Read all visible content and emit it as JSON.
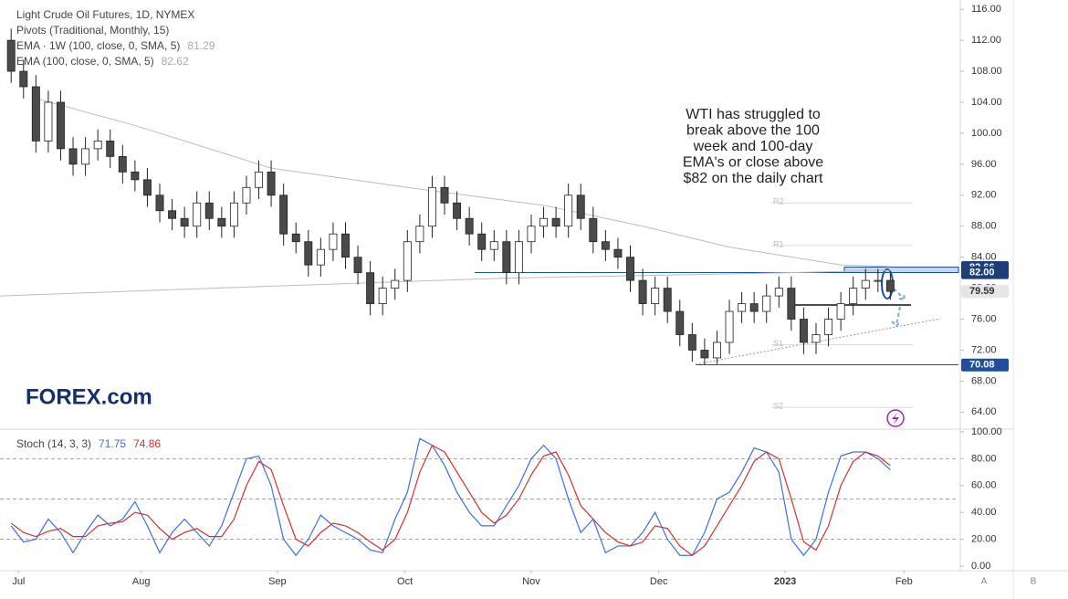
{
  "chart_data": [
    {
      "type": "candlestick",
      "title": "Light Crude Oil Futures, 1D, NYMEX",
      "indicators": [
        {
          "label": "Pivots (Traditional, Monthly, 15)"
        },
        {
          "label": "EMA · 1W (100, close, 0, SMA, 5)",
          "value": 81.29,
          "color": "#bdbdbd",
          "x": [
            2,
            10,
            21,
            32,
            43,
            51,
            58,
            67,
            71
          ],
          "values": [
            104.5,
            101,
            95.5,
            93,
            90.7,
            88,
            85.3,
            83,
            82.8
          ]
        },
        {
          "label": "EMA (100, close, 0, SMA, 5)",
          "value": 82.62,
          "color": "#bdbdbd",
          "x": [
            -0.9,
            20,
            40,
            60,
            71
          ],
          "values": [
            79,
            80.2,
            81.3,
            81.9,
            82.3
          ]
        }
      ],
      "pivots": [
        {
          "label": "R2",
          "value": 91
        },
        {
          "label": "R1",
          "value": 85.5
        },
        {
          "label": "S1",
          "value": 72.7
        },
        {
          "label": "S2",
          "value": 64.6
        }
      ],
      "annotation": [
        "WTI has struggled to",
        "break above the 100",
        "week and 100-day",
        "EMA's or close above",
        "$82 on the daily chart"
      ],
      "xlim": [
        -0.9,
        76.5
      ],
      "ylim": [
        61.8,
        117.2
      ],
      "yticks": [
        {
          "value": 64,
          "label": "64.00"
        },
        {
          "value": 68,
          "label": "68.00"
        },
        {
          "value": 72,
          "label": "72.00"
        },
        {
          "value": 76,
          "label": "76.00"
        },
        {
          "value": 80,
          "label": "80.00"
        },
        {
          "value": 84,
          "label": "84.00"
        },
        {
          "value": 88,
          "label": "88.00"
        },
        {
          "value": 92,
          "label": "92.00"
        },
        {
          "value": 96,
          "label": "96.00"
        },
        {
          "value": 100,
          "label": "100.00"
        },
        {
          "value": 104,
          "label": "104.00"
        },
        {
          "value": 108,
          "label": "108.00"
        },
        {
          "value": 112,
          "label": "112.00"
        },
        {
          "value": 116,
          "label": "116.00"
        }
      ],
      "price_labels": [
        {
          "value": 82.66,
          "label": "82.66",
          "color": "#1c3f7a"
        },
        {
          "value": 82,
          "label": "82.00",
          "color": "#1c3f7a"
        },
        {
          "value": 79.59,
          "label": "79.59",
          "color": "#e6e6e6"
        },
        {
          "value": 70.08,
          "label": "70.08",
          "color": "#1e4e9c"
        }
      ],
      "up_color": "#ffffff",
      "down_color": "#4a4a4a",
      "open": [
        112,
        108,
        106,
        99,
        104,
        98,
        96,
        98,
        99,
        97,
        95,
        94,
        92,
        90,
        89,
        88,
        91,
        89,
        88,
        91,
        93,
        95,
        92,
        87,
        86,
        83,
        85,
        87,
        84,
        82,
        78,
        80,
        81,
        86,
        88,
        93,
        91,
        89,
        87,
        85,
        86,
        82,
        86,
        88,
        89,
        88,
        92,
        89,
        86,
        85,
        84,
        81,
        78,
        80,
        77,
        74,
        72,
        71,
        73,
        77,
        78,
        77,
        79,
        80,
        76,
        73,
        74,
        76,
        78,
        80,
        81,
        81
      ],
      "high": [
        113.5,
        109.5,
        107.5,
        105.5,
        105.5,
        99.5,
        99.5,
        100.5,
        100.5,
        98.5,
        96.5,
        95.5,
        93.5,
        91.5,
        90.5,
        92.5,
        92.5,
        90.5,
        92.5,
        94.5,
        96.5,
        96.5,
        93.5,
        88.5,
        87.5,
        86.5,
        88.5,
        88.5,
        85.5,
        83.5,
        81.5,
        82.5,
        87.5,
        89.5,
        94.5,
        94.5,
        92.5,
        90.5,
        88.5,
        87.5,
        87.5,
        87.5,
        89.5,
        90.5,
        90.5,
        93.5,
        93.5,
        90.5,
        87.5,
        86.5,
        85.5,
        82.5,
        81.5,
        81.5,
        78.5,
        75.5,
        73.5,
        74.5,
        78.5,
        79.5,
        79.5,
        80.5,
        81.5,
        81.5,
        77.5,
        75.5,
        77.5,
        79.5,
        81.5,
        82.5,
        82.5,
        82
      ],
      "low": [
        106.5,
        104.5,
        97.5,
        97.5,
        96.5,
        94.5,
        94.5,
        96.5,
        95.5,
        93.5,
        92.5,
        90.5,
        88.5,
        87.5,
        86.5,
        86.5,
        87.5,
        86.5,
        86.5,
        89.5,
        91.5,
        90.5,
        85.5,
        84.5,
        81.5,
        81.5,
        83.5,
        82.5,
        80.5,
        76.5,
        76.5,
        78.5,
        79.5,
        84.5,
        86.5,
        89.5,
        87.5,
        85.5,
        83.5,
        83.5,
        80.5,
        80.5,
        84.5,
        86.5,
        86.5,
        86.5,
        87.5,
        84.5,
        83.5,
        82.5,
        79.5,
        76.5,
        76.5,
        75.5,
        72.5,
        70.5,
        70.08,
        70.2,
        71.5,
        75.5,
        75.5,
        75.5,
        77.5,
        74.5,
        71.5,
        71.5,
        72.5,
        74.5,
        76.5,
        78.5,
        79.5,
        78.5
      ],
      "close": [
        108,
        106,
        99,
        104,
        98,
        96,
        98,
        99,
        97,
        95,
        94,
        92,
        90,
        89,
        88,
        91,
        89,
        88,
        91,
        93,
        95,
        92,
        87,
        86,
        83,
        85,
        87,
        84,
        82,
        78,
        80,
        81,
        86,
        88,
        93,
        91,
        89,
        87,
        85,
        86,
        82,
        86,
        88,
        89,
        88,
        92,
        89,
        86,
        85,
        84,
        81,
        78,
        80,
        77,
        74,
        72,
        71,
        73,
        77,
        78,
        77,
        79,
        80,
        76,
        73,
        74,
        76,
        78,
        80,
        81,
        81,
        79.59
      ]
    },
    {
      "type": "line",
      "title": "Stoch (14, 3, 3)",
      "xlim": [
        -0.9,
        76.5
      ],
      "ylim": [
        -3.4,
        102
      ],
      "yticks": [
        {
          "value": 0,
          "label": "0.00"
        },
        {
          "value": 20,
          "label": "20.00"
        },
        {
          "value": 40,
          "label": "40.00"
        },
        {
          "value": 60,
          "label": "60.00"
        },
        {
          "value": 80,
          "label": "80.00"
        },
        {
          "value": 100,
          "label": "100.00"
        }
      ],
      "bands": [
        80,
        50,
        20
      ],
      "xticks": [
        {
          "value": 0.6,
          "label": "Jul"
        },
        {
          "value": 10.5,
          "label": "Aug"
        },
        {
          "value": 21.5,
          "label": "Sep"
        },
        {
          "value": 31.8,
          "label": "Oct"
        },
        {
          "value": 42,
          "label": "Nov"
        },
        {
          "value": 52.3,
          "label": "Dec"
        },
        {
          "value": 62.5,
          "label": "2023"
        },
        {
          "value": 72.1,
          "label": "Feb"
        }
      ],
      "series": [
        {
          "legend_value": 71.75,
          "color": "#3d6fe0",
          "values": [
            30,
            18,
            20,
            35,
            25,
            10,
            25,
            38,
            30,
            35,
            48,
            30,
            10,
            25,
            35,
            25,
            15,
            30,
            55,
            80,
            82,
            60,
            20,
            8,
            20,
            38,
            30,
            25,
            20,
            12,
            10,
            35,
            55,
            95,
            90,
            75,
            55,
            40,
            30,
            30,
            45,
            60,
            80,
            90,
            80,
            50,
            25,
            35,
            10,
            15,
            15,
            25,
            40,
            20,
            8,
            8,
            25,
            50,
            55,
            70,
            88,
            85,
            70,
            20,
            8,
            20,
            55,
            82,
            85,
            85,
            80,
            71.75
          ]
        },
        {
          "legend_value": 74.86,
          "color": "#d2302f",
          "values": [
            32,
            25,
            22,
            26,
            28,
            22,
            22,
            30,
            32,
            33,
            40,
            38,
            28,
            20,
            25,
            28,
            22,
            22,
            35,
            60,
            78,
            72,
            45,
            20,
            15,
            25,
            32,
            30,
            25,
            18,
            12,
            20,
            40,
            70,
            90,
            85,
            70,
            55,
            40,
            32,
            38,
            50,
            68,
            82,
            85,
            68,
            45,
            35,
            25,
            18,
            15,
            18,
            30,
            28,
            15,
            8,
            15,
            30,
            45,
            60,
            78,
            85,
            80,
            50,
            18,
            12,
            30,
            60,
            78,
            85,
            82,
            74.86
          ]
        }
      ]
    }
  ],
  "logo": "FOREX.com",
  "buttons": [
    "A",
    "B"
  ]
}
